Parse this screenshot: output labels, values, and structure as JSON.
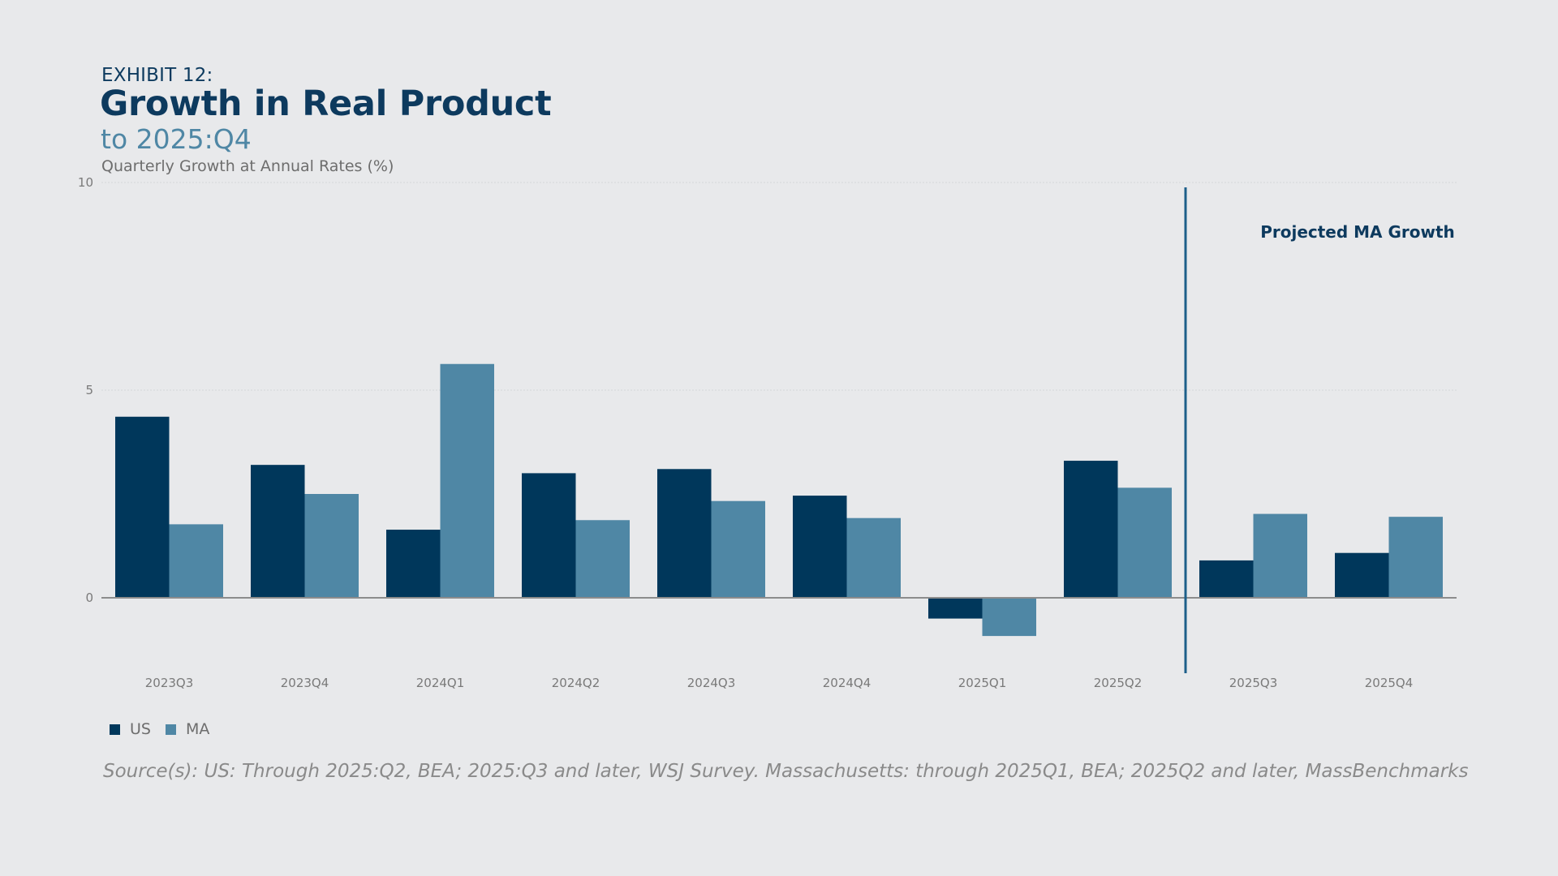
{
  "header": {
    "exhibit": "EXHIBIT 12:",
    "title": "Growth in Real Product",
    "subtitle": "to 2025:Q4",
    "axis_caption": "Quarterly Growth at Annual Rates (%)"
  },
  "colors": {
    "us": "#00375b",
    "ma": "#4f87a5",
    "divider": "#1d5f8a",
    "annotation": "#0d3a5e",
    "grid": "#d4d6d9",
    "baseline": "#8c8c8c",
    "tick_text": "#7a7a7a"
  },
  "chart_data": {
    "type": "bar",
    "title": "Growth in Real Product",
    "subtitle": "to 2025:Q4",
    "ylabel": "Quarterly Growth at Annual Rates (%)",
    "categories": [
      "2023Q3",
      "2023Q4",
      "2024Q1",
      "2024Q2",
      "2024Q3",
      "2024Q4",
      "2025Q1",
      "2025Q2",
      "2025Q3",
      "2025Q4"
    ],
    "series": [
      {
        "name": "US",
        "values": [
          4.36,
          3.2,
          1.64,
          3.0,
          3.1,
          2.46,
          -0.5,
          3.3,
          0.9,
          1.08
        ]
      },
      {
        "name": "MA",
        "values": [
          1.77,
          2.5,
          5.63,
          1.87,
          2.33,
          1.92,
          -0.92,
          2.65,
          2.02,
          1.95
        ]
      }
    ],
    "ylim": [
      -1.8,
      10
    ],
    "yticks": [
      0,
      5,
      10
    ],
    "grid": true,
    "legend": "bottom-left",
    "annotation": {
      "text": "Projected MA Growth",
      "divider_between": [
        "2025Q2",
        "2025Q3"
      ]
    }
  },
  "legend": {
    "items": [
      {
        "label": "US",
        "color": "#00375b"
      },
      {
        "label": "MA",
        "color": "#4f87a5"
      }
    ]
  },
  "footer": {
    "source": "Source(s): US: Through 2025:Q2, BEA; 2025:Q3 and later, WSJ Survey. Massachusetts: through 2025Q1, BEA; 2025Q2 and later, MassBenchmarks"
  }
}
